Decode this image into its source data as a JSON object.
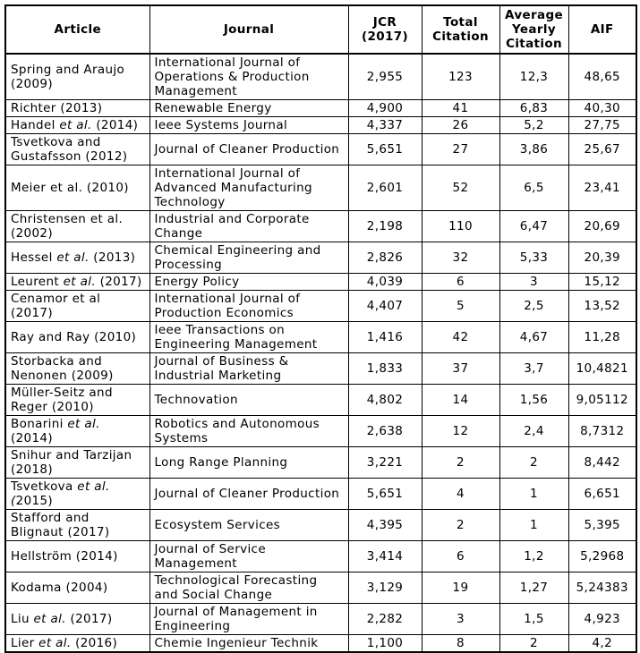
{
  "table": {
    "headers": [
      "Article",
      "Journal",
      "JCR (2017)",
      "Total Citation",
      "Average Yearly Citation",
      "AIF"
    ],
    "rows": [
      {
        "article": [
          {
            "t": "Spring and Araujo (2009)",
            "i": false
          }
        ],
        "journal": "International Journal of Operations & Production Management",
        "jcr_2017": "2,955",
        "total_citation": "123",
        "avg_yearly_citation": "12,3",
        "aif": "48,65"
      },
      {
        "article": [
          {
            "t": "Richter (2013)",
            "i": false
          }
        ],
        "journal": "Renewable Energy",
        "jcr_2017": "4,900",
        "total_citation": "41",
        "avg_yearly_citation": "6,83",
        "aif": "40,30"
      },
      {
        "article": [
          {
            "t": "Handel ",
            "i": false
          },
          {
            "t": "et al.",
            "i": true
          },
          {
            "t": " (2014)",
            "i": false
          }
        ],
        "journal": "Ieee Systems Journal",
        "jcr_2017": "4,337",
        "total_citation": "26",
        "avg_yearly_citation": "5,2",
        "aif": "27,75"
      },
      {
        "article": [
          {
            "t": "Tsvetkova and Gustafsson (2012)",
            "i": false
          }
        ],
        "journal": "Journal of Cleaner Production",
        "jcr_2017": "5,651",
        "total_citation": "27",
        "avg_yearly_citation": "3,86",
        "aif": "25,67"
      },
      {
        "article": [
          {
            "t": "Meier et al. (2010)",
            "i": false
          }
        ],
        "journal": "International Journal of Advanced Manufacturing Technology",
        "jcr_2017": "2,601",
        "total_citation": "52",
        "avg_yearly_citation": "6,5",
        "aif": "23,41"
      },
      {
        "article": [
          {
            "t": "Christensen et al. (2002)",
            "i": false
          }
        ],
        "journal": "Industrial and Corporate Change",
        "jcr_2017": "2,198",
        "total_citation": "110",
        "avg_yearly_citation": "6,47",
        "aif": "20,69"
      },
      {
        "article": [
          {
            "t": "Hessel ",
            "i": false
          },
          {
            "t": "et al.",
            "i": true
          },
          {
            "t": " (2013)",
            "i": false
          }
        ],
        "journal": "Chemical Engineering and Processing",
        "jcr_2017": "2,826",
        "total_citation": "32",
        "avg_yearly_citation": "5,33",
        "aif": "20,39"
      },
      {
        "article": [
          {
            "t": "Leurent ",
            "i": false
          },
          {
            "t": "et al.",
            "i": true
          },
          {
            "t": " (2017)",
            "i": false
          }
        ],
        "journal": "Energy Policy",
        "jcr_2017": "4,039",
        "total_citation": "6",
        "avg_yearly_citation": "3",
        "aif": "15,12"
      },
      {
        "article": [
          {
            "t": "Cenamor et al (2017)",
            "i": false
          }
        ],
        "journal": "International Journal of Production Economics",
        "jcr_2017": "4,407",
        "total_citation": "5",
        "avg_yearly_citation": "2,5",
        "aif": "13,52"
      },
      {
        "article": [
          {
            "t": "Ray and Ray (2010)",
            "i": false
          }
        ],
        "journal": "Ieee Transactions on Engineering Management",
        "jcr_2017": "1,416",
        "total_citation": "42",
        "avg_yearly_citation": "4,67",
        "aif": "11,28"
      },
      {
        "article": [
          {
            "t": "Storbacka and Nenonen (2009)",
            "i": false
          }
        ],
        "journal": "Journal of Business & Industrial Marketing",
        "jcr_2017": "1,833",
        "total_citation": "37",
        "avg_yearly_citation": "3,7",
        "aif": "10,4821"
      },
      {
        "article": [
          {
            "t": "Müller-Seitz and Reger (2010)",
            "i": false
          }
        ],
        "journal": "Technovation",
        "jcr_2017": "4,802",
        "total_citation": "14",
        "avg_yearly_citation": "1,56",
        "aif": "9,05112"
      },
      {
        "article": [
          {
            "t": "Bonarini ",
            "i": false
          },
          {
            "t": "et al.",
            "i": true
          },
          {
            "t": " (2014)",
            "i": false
          }
        ],
        "journal": "Robotics and Autonomous Systems",
        "jcr_2017": "2,638",
        "total_citation": "12",
        "avg_yearly_citation": "2,4",
        "aif": "8,7312"
      },
      {
        "article": [
          {
            "t": "Snihur and Tarzijan (2018)",
            "i": false
          }
        ],
        "journal": "Long Range Planning",
        "jcr_2017": "3,221",
        "total_citation": "2",
        "avg_yearly_citation": "2",
        "aif": "8,442"
      },
      {
        "article": [
          {
            "t": "Tsvetkova ",
            "i": false
          },
          {
            "t": "et al.",
            "i": true
          },
          {
            "t": " ",
            "i": false
          },
          {
            "t": "(",
            "i": true
          },
          {
            "t": "2015)",
            "i": false
          }
        ],
        "journal": "Journal of Cleaner Production",
        "jcr_2017": "5,651",
        "total_citation": "4",
        "avg_yearly_citation": "1",
        "aif": "6,651"
      },
      {
        "article": [
          {
            "t": "Stafford and Blignaut (2017)",
            "i": false
          }
        ],
        "journal": "Ecosystem Services",
        "jcr_2017": "4,395",
        "total_citation": "2",
        "avg_yearly_citation": "1",
        "aif": "5,395"
      },
      {
        "article": [
          {
            "t": "Hellström (2014)",
            "i": false
          }
        ],
        "journal": "Journal of Service Management",
        "jcr_2017": "3,414",
        "total_citation": "6",
        "avg_yearly_citation": "1,2",
        "aif": "5,2968"
      },
      {
        "article": [
          {
            "t": "Kodama (2004)",
            "i": false
          }
        ],
        "journal": "Technological Forecasting and Social Change",
        "jcr_2017": "3,129",
        "total_citation": "19",
        "avg_yearly_citation": "1,27",
        "aif": "5,24383"
      },
      {
        "article": [
          {
            "t": "Liu ",
            "i": false
          },
          {
            "t": "et al.",
            "i": true
          },
          {
            "t": " (2017)",
            "i": false
          }
        ],
        "journal": "Journal of Management in Engineering",
        "jcr_2017": "2,282",
        "total_citation": "3",
        "avg_yearly_citation": "1,5",
        "aif": "4,923"
      },
      {
        "article": [
          {
            "t": "Lier ",
            "i": false
          },
          {
            "t": "et al.",
            "i": true
          },
          {
            "t": " (2016)",
            "i": false
          }
        ],
        "journal": "Chemie Ingenieur Technik",
        "jcr_2017": "1,100",
        "total_citation": "8",
        "avg_yearly_citation": "2",
        "aif": "4,2"
      }
    ],
    "colors": {
      "border": "#000000",
      "text": "#000000",
      "background": "#ffffff"
    }
  }
}
